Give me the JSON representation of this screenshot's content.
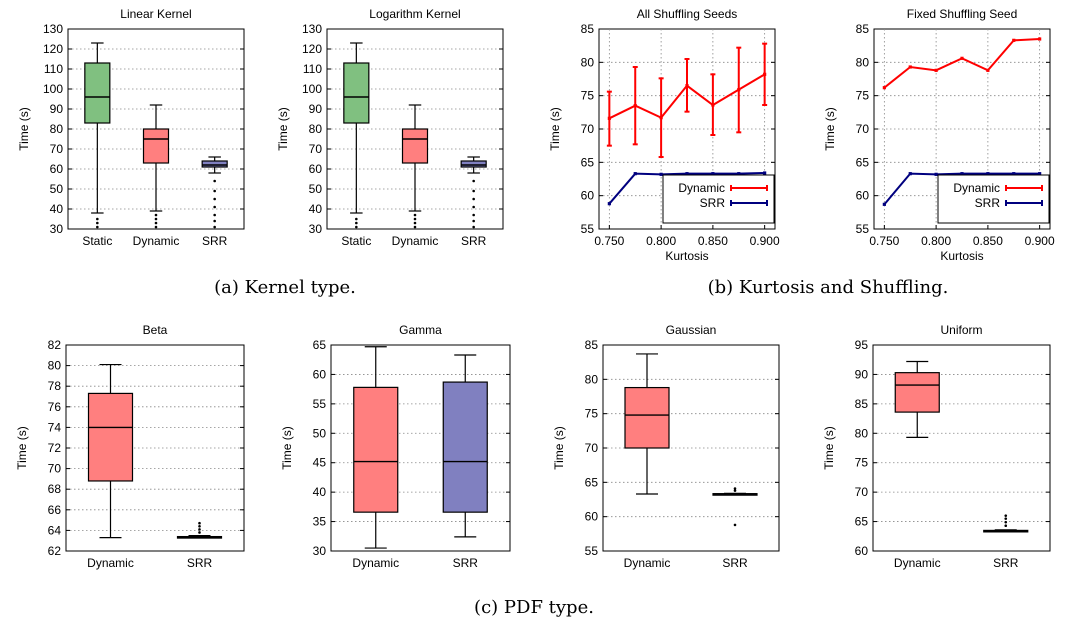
{
  "captions": {
    "a": "(a) Kernel type.",
    "b": "(b) Kurtosis and Shuffling.",
    "c": "(c) PDF type."
  },
  "colors": {
    "red_box": "#ff7f7f",
    "green_box": "#80c080",
    "blue_box": "#8080c0",
    "red_line": "#ff0000",
    "blue_line": "#00007f"
  },
  "chart_data": [
    {
      "id": "linear-kernel",
      "type": "box",
      "title": "Linear Kernel",
      "ylabel": "Time (s)",
      "ylim": [
        30,
        130
      ],
      "yticks": [
        30,
        40,
        50,
        60,
        70,
        80,
        90,
        100,
        110,
        120,
        130
      ],
      "grid": true,
      "categories": [
        "Static",
        "Dynamic",
        "SRR"
      ],
      "boxes": [
        {
          "name": "Static",
          "color": "#80c080",
          "min": 38,
          "q1": 83,
          "median": 96,
          "q3": 113,
          "max": 123,
          "outliers": [
            35,
            33,
            31
          ]
        },
        {
          "name": "Dynamic",
          "color": "#ff7f7f",
          "min": 39,
          "q1": 63,
          "median": 75,
          "q3": 80,
          "max": 92,
          "outliers": [
            37,
            35,
            33,
            31
          ]
        },
        {
          "name": "SRR",
          "color": "#8080c0",
          "min": 58,
          "q1": 61,
          "median": 62,
          "q3": 64,
          "max": 66,
          "outliers": [
            54,
            49,
            45,
            41,
            37,
            34,
            31
          ]
        }
      ]
    },
    {
      "id": "logarithm-kernel",
      "type": "box",
      "title": "Logarithm Kernel",
      "ylabel": "Time (s)",
      "ylim": [
        30,
        130
      ],
      "yticks": [
        30,
        40,
        50,
        60,
        70,
        80,
        90,
        100,
        110,
        120,
        130
      ],
      "grid": true,
      "categories": [
        "Static",
        "Dynamic",
        "SRR"
      ],
      "boxes": [
        {
          "name": "Static",
          "color": "#80c080",
          "min": 38,
          "q1": 83,
          "median": 96,
          "q3": 113,
          "max": 123,
          "outliers": [
            35,
            33,
            31
          ]
        },
        {
          "name": "Dynamic",
          "color": "#ff7f7f",
          "min": 39,
          "q1": 63,
          "median": 75,
          "q3": 80,
          "max": 92,
          "outliers": [
            37,
            35,
            33,
            31
          ]
        },
        {
          "name": "SRR",
          "color": "#8080c0",
          "min": 58,
          "q1": 61,
          "median": 62,
          "q3": 64,
          "max": 66,
          "outliers": [
            54,
            49,
            45,
            41,
            37,
            34,
            31
          ]
        }
      ]
    },
    {
      "id": "all-shuffling-seeds",
      "type": "line",
      "title": "All Shuffling Seeds",
      "xlabel": "Kurtosis",
      "ylabel": "Time (s)",
      "xlim": [
        0.74,
        0.91
      ],
      "xticks": [
        0.75,
        0.8,
        0.85,
        0.9
      ],
      "xtick_labels": [
        "0.750",
        "0.800",
        "0.850",
        "0.900"
      ],
      "ylim": [
        55,
        85
      ],
      "yticks": [
        55,
        60,
        65,
        70,
        75,
        80,
        85
      ],
      "grid": true,
      "legend": "bottom-right",
      "x": [
        0.75,
        0.775,
        0.8,
        0.825,
        0.85,
        0.875,
        0.9
      ],
      "series": [
        {
          "name": "Dynamic",
          "color": "#ff0000",
          "values": [
            71.6,
            73.5,
            71.7,
            76.5,
            73.6,
            75.9,
            78.2
          ],
          "err_low": [
            67.5,
            67.7,
            65.8,
            72.6,
            69.1,
            69.5,
            73.6
          ],
          "err_high": [
            75.6,
            79.3,
            77.6,
            80.5,
            78.2,
            82.2,
            82.8
          ]
        },
        {
          "name": "SRR",
          "color": "#00007f",
          "values": [
            58.8,
            63.3,
            63.2,
            63.3,
            63.3,
            63.3,
            63.4
          ]
        }
      ]
    },
    {
      "id": "fixed-shuffling-seed",
      "type": "line",
      "title": "Fixed Shuffling Seed",
      "xlabel": "Kurtosis",
      "ylabel": "Time (s)",
      "xlim": [
        0.74,
        0.91
      ],
      "xticks": [
        0.75,
        0.8,
        0.85,
        0.9
      ],
      "xtick_labels": [
        "0.750",
        "0.800",
        "0.850",
        "0.900"
      ],
      "ylim": [
        55,
        85
      ],
      "yticks": [
        55,
        60,
        65,
        70,
        75,
        80,
        85
      ],
      "grid": true,
      "legend": "bottom-right",
      "x": [
        0.75,
        0.775,
        0.8,
        0.825,
        0.85,
        0.875,
        0.9
      ],
      "series": [
        {
          "name": "Dynamic",
          "color": "#ff0000",
          "values": [
            76.2,
            79.3,
            78.8,
            80.6,
            78.8,
            83.3,
            83.5
          ]
        },
        {
          "name": "SRR",
          "color": "#00007f",
          "values": [
            58.7,
            63.3,
            63.2,
            63.3,
            63.3,
            63.3,
            63.3
          ]
        }
      ]
    },
    {
      "id": "beta",
      "type": "box",
      "title": "Beta",
      "ylabel": "Time (s)",
      "ylim": [
        62,
        82
      ],
      "yticks": [
        62,
        64,
        66,
        68,
        70,
        72,
        74,
        76,
        78,
        80,
        82
      ],
      "grid": true,
      "categories": [
        "Dynamic",
        "SRR"
      ],
      "boxes": [
        {
          "name": "Dynamic",
          "color": "#ff7f7f",
          "min": 63.3,
          "q1": 68.8,
          "median": 74,
          "q3": 77.3,
          "max": 80.1,
          "outliers": []
        },
        {
          "name": "SRR",
          "color": "#8080c0",
          "min": 63.3,
          "q1": 63.3,
          "median": 63.35,
          "q3": 63.4,
          "max": 63.5,
          "outliers": [
            63.8,
            64.1,
            64.4,
            64.7
          ]
        }
      ]
    },
    {
      "id": "gamma",
      "type": "box",
      "title": "Gamma",
      "ylabel": "Time (s)",
      "ylim": [
        30,
        65
      ],
      "yticks": [
        30,
        35,
        40,
        45,
        50,
        55,
        60,
        65
      ],
      "grid": true,
      "categories": [
        "Dynamic",
        "SRR"
      ],
      "boxes": [
        {
          "name": "Dynamic",
          "color": "#ff7f7f",
          "min": 30.5,
          "q1": 36.6,
          "median": 45.2,
          "q3": 57.8,
          "max": 64.7,
          "outliers": []
        },
        {
          "name": "SRR",
          "color": "#8080c0",
          "min": 32.4,
          "q1": 36.6,
          "median": 45.2,
          "q3": 58.7,
          "max": 63.3,
          "outliers": []
        }
      ]
    },
    {
      "id": "gaussian",
      "type": "box",
      "title": "Gaussian",
      "ylabel": "Time (s)",
      "ylim": [
        55,
        85
      ],
      "yticks": [
        55,
        60,
        65,
        70,
        75,
        80,
        85
      ],
      "grid": true,
      "categories": [
        "Dynamic",
        "SRR"
      ],
      "boxes": [
        {
          "name": "Dynamic",
          "color": "#ff7f7f",
          "min": 63.3,
          "q1": 70,
          "median": 74.8,
          "q3": 78.8,
          "max": 83.7,
          "outliers": []
        },
        {
          "name": "SRR",
          "color": "#8080c0",
          "min": 63.2,
          "q1": 63.2,
          "median": 63.3,
          "q3": 63.35,
          "max": 63.4,
          "outliers": [
            63.8,
            64.1,
            58.8
          ]
        }
      ]
    },
    {
      "id": "uniform",
      "type": "box",
      "title": "Uniform",
      "ylabel": "Time (s)",
      "ylim": [
        60,
        95
      ],
      "yticks": [
        60,
        65,
        70,
        75,
        80,
        85,
        90,
        95
      ],
      "grid": true,
      "categories": [
        "Dynamic",
        "SRR"
      ],
      "boxes": [
        {
          "name": "Dynamic",
          "color": "#ff7f7f",
          "min": 79.3,
          "q1": 83.6,
          "median": 88.2,
          "q3": 90.3,
          "max": 92.2,
          "outliers": []
        },
        {
          "name": "SRR",
          "color": "#8080c0",
          "min": 63.3,
          "q1": 63.3,
          "median": 63.4,
          "q3": 63.5,
          "max": 63.6,
          "outliers": [
            64.3,
            64.9,
            65.5,
            66
          ]
        }
      ]
    }
  ]
}
